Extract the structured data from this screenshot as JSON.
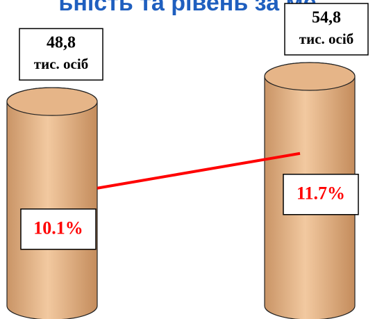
{
  "chart_data": {
    "type": "bar",
    "title": "ьність та рівень за ме",
    "categories": [
      null,
      null
    ],
    "values": [
      48.8,
      54.8
    ],
    "value_labels": [
      "48,8",
      "54,8"
    ],
    "value_unit": "тис. осіб",
    "color": "#e6b588",
    "series": [
      {
        "type": "line",
        "axis": "y2",
        "color": "#ff0000",
        "values": [
          10.1,
          11.7
        ],
        "value_labels": [
          "10.1%",
          "11.7%"
        ]
      }
    ],
    "y2lim": [
      5,
      18
    ]
  }
}
